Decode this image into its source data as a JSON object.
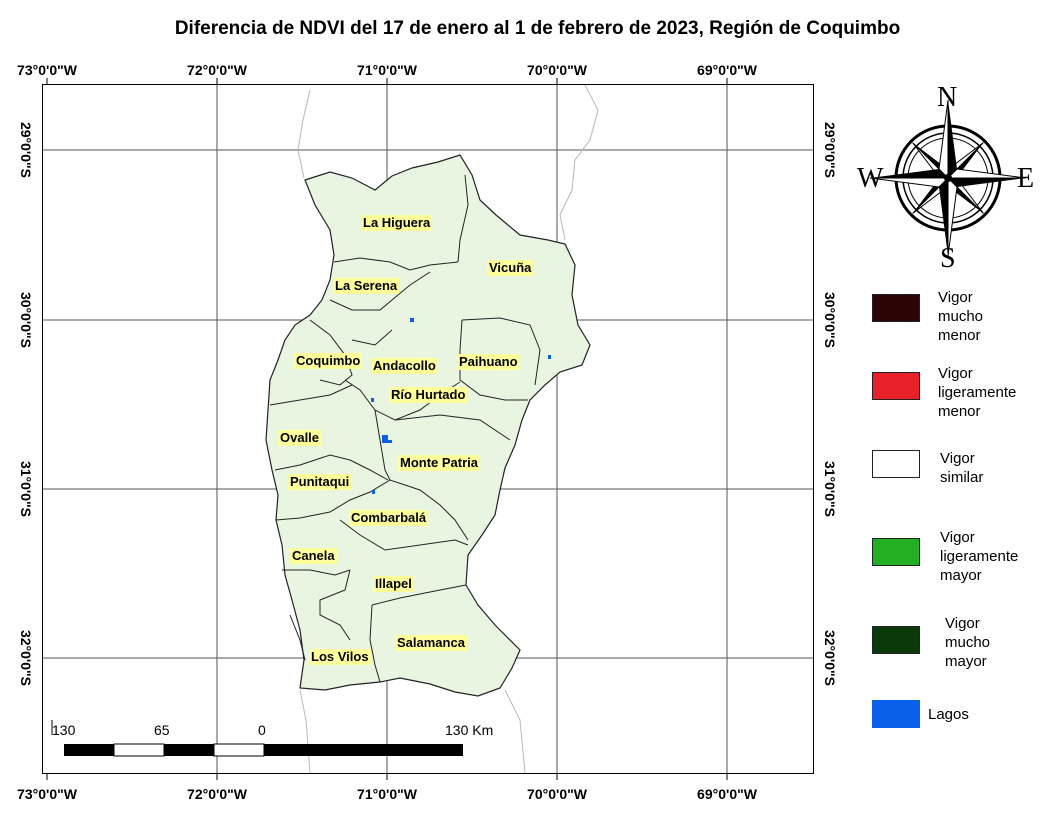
{
  "title": "Diferencia de NDVI del 17 de enero al 1 de febrero de 2023, Región de Coquimbo",
  "longitude_labels": [
    "73°0'0\"W",
    "72°0'0\"W",
    "71°0'0\"W",
    "70°0'0\"W",
    "69°0'0\"W"
  ],
  "latitude_labels": [
    "29°0'0\"S",
    "30°0'0\"S",
    "31°0'0\"S",
    "32°0'0\"S"
  ],
  "municipalities": [
    "La Higuera",
    "Vicuña",
    "La Serena",
    "Coquimbo",
    "Andacollo",
    "Paihuano",
    "Río Hurtado",
    "Ovalle",
    "Monte Patria",
    "Punitaqui",
    "Combarbalá",
    "Canela",
    "Illapel",
    "Salamanca",
    "Los Vilos"
  ],
  "scale_bar": {
    "labels": [
      "130",
      "65",
      "0",
      "130 Km"
    ]
  },
  "compass": {
    "north": "N",
    "south": "S",
    "east": "E",
    "west": "W"
  },
  "legend": [
    {
      "label": "Vigor\nmucho\nmenor",
      "color": "#2b0505"
    },
    {
      "label": "Vigor\nligeramente\nmenor",
      "color": "#e8202a"
    },
    {
      "label": "Vigor\nsimilar",
      "color": "#ffffff"
    },
    {
      "label": "Vigor\nligeramente\nmayor",
      "color": "#22b022"
    },
    {
      "label": "Vigor\nmucho\nmayor",
      "color": "#0a3a0a"
    },
    {
      "label": "Lagos",
      "color": "#0a60e8"
    }
  ]
}
